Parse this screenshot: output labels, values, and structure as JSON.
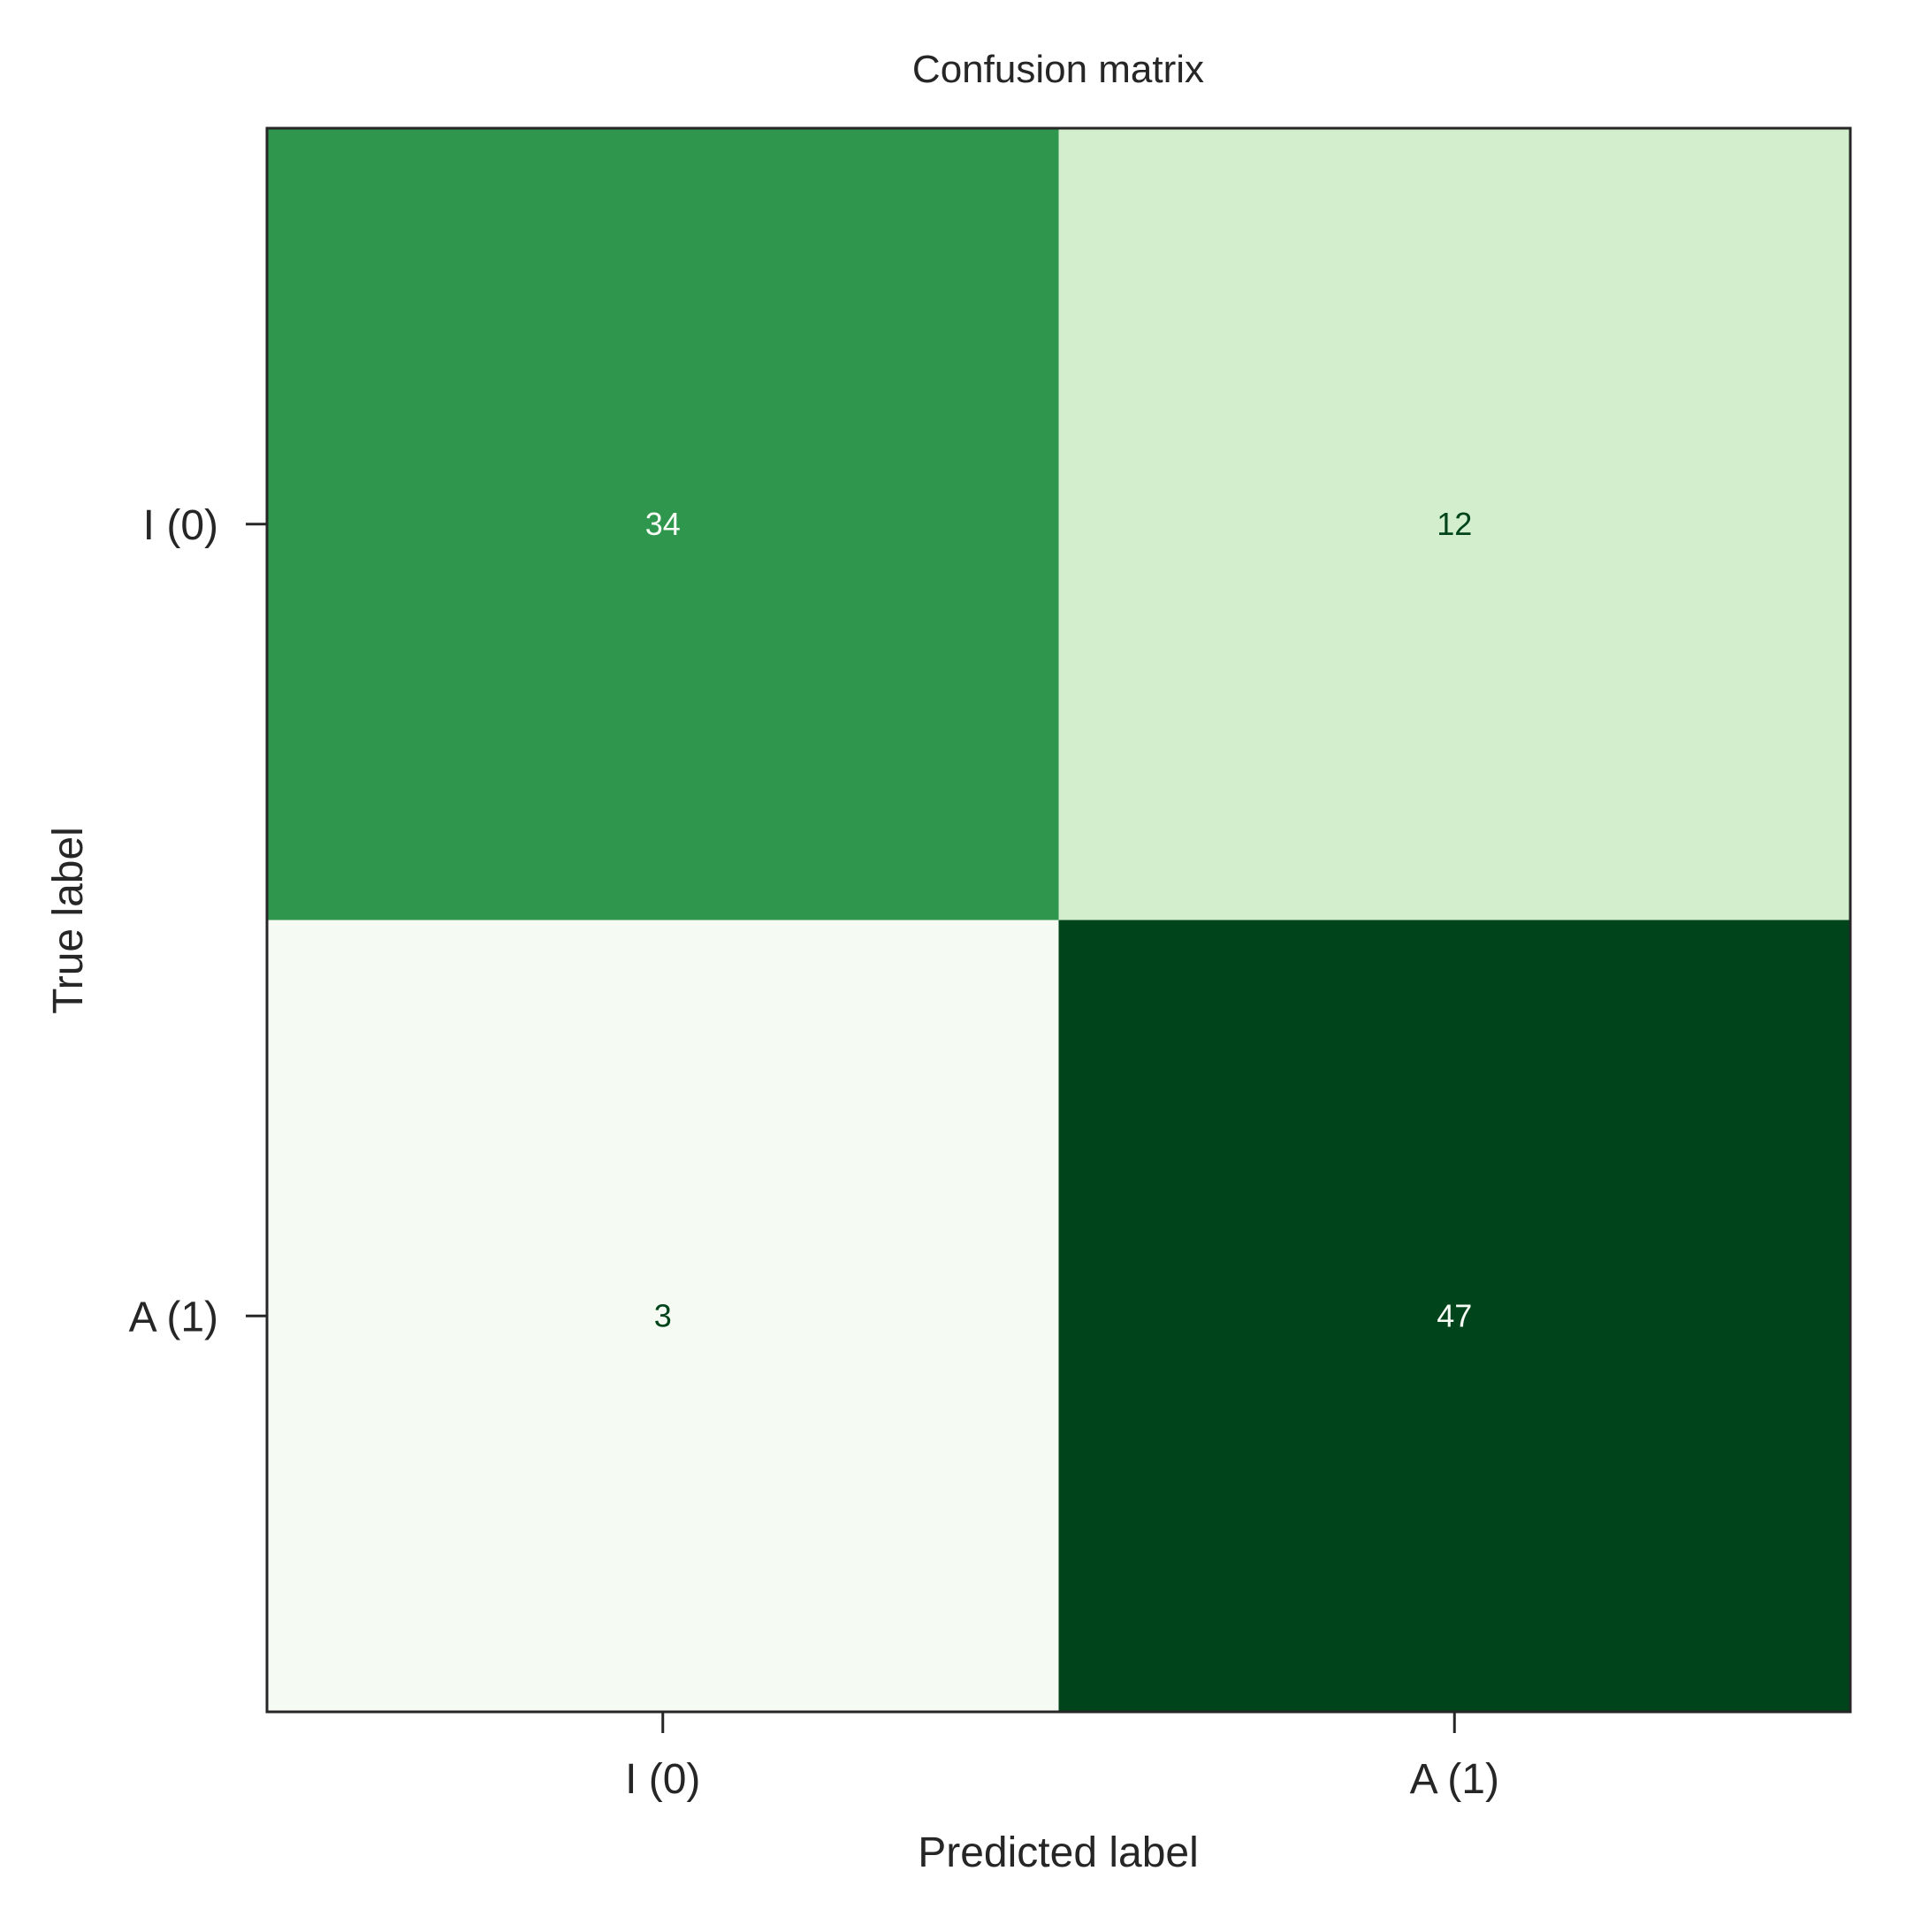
{
  "chart_data": {
    "type": "heatmap",
    "title": "Confusion matrix",
    "xlabel": "Predicted label",
    "ylabel": "True label",
    "x_categories": [
      "I (0)",
      "A (1)"
    ],
    "y_categories": [
      "I (0)",
      "A (1)"
    ],
    "values": [
      [
        34,
        12
      ],
      [
        3,
        47
      ]
    ],
    "value_labels": [
      [
        "34",
        "12"
      ],
      [
        "3",
        "47"
      ]
    ],
    "colormap": "Greens",
    "colorbar": false,
    "grid": false,
    "cell_colors": [
      [
        "#2e964d",
        "#d3eecd"
      ],
      [
        "#f5fbf2",
        "#00441b"
      ]
    ],
    "cell_text_colors": [
      [
        "#f7fcf5",
        "#00441b"
      ],
      [
        "#00441b",
        "#f7fcf5"
      ]
    ]
  }
}
